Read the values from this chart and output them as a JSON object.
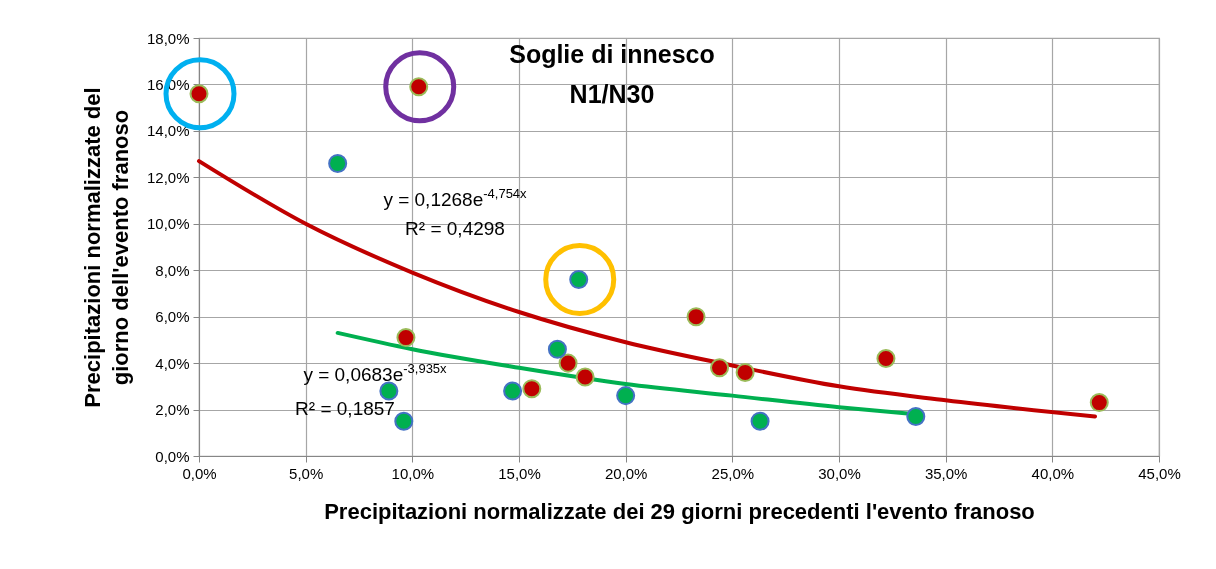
{
  "chart_data": {
    "type": "scatter",
    "title": "Soglie di innesco\nN1/N30",
    "xlabel": "Precipitazioni normalizzate dei 29 giorni precedenti l'evento franoso",
    "ylabel": "Precipitazioni normalizzate  del\ngiorno dell'evento franoso",
    "xlim": [
      0,
      45
    ],
    "ylim": [
      0,
      18
    ],
    "xticks": [
      {
        "value": 0,
        "label": "0,0%"
      },
      {
        "value": 5,
        "label": "5,0%"
      },
      {
        "value": 10,
        "label": "10,0%"
      },
      {
        "value": 15,
        "label": "15,0%"
      },
      {
        "value": 20,
        "label": "20,0%"
      },
      {
        "value": 25,
        "label": "25,0%"
      },
      {
        "value": 30,
        "label": "30,0%"
      },
      {
        "value": 35,
        "label": "35,0%"
      },
      {
        "value": 40,
        "label": "40,0%"
      },
      {
        "value": 45,
        "label": "45,0%"
      }
    ],
    "yticks": [
      {
        "value": 0,
        "label": "0,0%"
      },
      {
        "value": 2,
        "label": "2,0%"
      },
      {
        "value": 4,
        "label": "4,0%"
      },
      {
        "value": 6,
        "label": "6,0%"
      },
      {
        "value": 8,
        "label": "8,0%"
      },
      {
        "value": 10,
        "label": "10,0%"
      },
      {
        "value": 12,
        "label": "12,0%"
      },
      {
        "value": 14,
        "label": "14,0%"
      },
      {
        "value": 16,
        "label": "16,0%"
      },
      {
        "value": 18,
        "label": "18,0%"
      }
    ],
    "grid": true,
    "marker": "circle",
    "series": [
      {
        "type": "line",
        "marker": "none",
        "color": "#c00000",
        "x": [
          0,
          5,
          10,
          15,
          20,
          25,
          30,
          35,
          42
        ],
        "values": [
          12.7,
          10.0,
          7.9,
          6.2,
          4.9,
          3.9,
          3.0,
          2.4,
          1.7
        ]
      },
      {
        "type": "line",
        "marker": "none",
        "color": "#00b050",
        "x": [
          6.5,
          10,
          15,
          20,
          25,
          30,
          33.6
        ],
        "values": [
          5.3,
          4.6,
          3.8,
          3.1,
          2.6,
          2.1,
          1.8
        ]
      },
      {
        "color": "#c00000",
        "x": [
          0.0,
          10.3,
          9.7,
          15.6,
          17.3,
          18.1,
          23.3,
          24.4,
          25.6,
          32.2,
          42.2
        ],
        "values": [
          15.6,
          15.9,
          5.1,
          2.9,
          4.0,
          3.4,
          6.0,
          3.8,
          3.6,
          4.2,
          2.3
        ]
      },
      {
        "color": "#00b050",
        "x": [
          6.5,
          8.9,
          9.6,
          14.7,
          16.8,
          17.8,
          20.0,
          26.3,
          33.6
        ],
        "values": [
          12.6,
          2.8,
          1.5,
          2.8,
          4.6,
          7.6,
          2.6,
          1.5,
          1.7
        ]
      }
    ],
    "annotations": [
      "y = 0,1268e$^{-4,754x}$",
      "R² = 0,4298",
      "y = 0,0683e$^{-3,935x}$",
      "R² = 0,1857"
    ]
  }
}
